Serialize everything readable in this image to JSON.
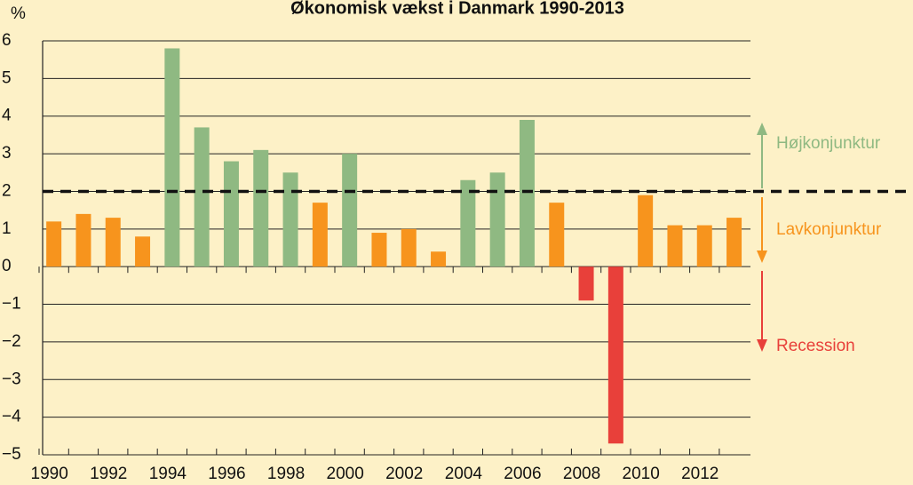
{
  "chart_data": {
    "type": "bar",
    "title": "Økonomisk vækst i Danmark 1990-2013",
    "y_label": "%",
    "categories": [
      "1990",
      null,
      "1992",
      null,
      "1994",
      null,
      "1996",
      null,
      "1998",
      null,
      "2000",
      null,
      "2002",
      null,
      "2004",
      null,
      "2006",
      null,
      "2008",
      null,
      "2010",
      null,
      "2012",
      null
    ],
    "values": [
      1.2,
      1.4,
      1.3,
      0.8,
      5.8,
      3.7,
      2.8,
      3.1,
      2.5,
      1.7,
      3.0,
      0.9,
      1.0,
      0.4,
      2.3,
      2.5,
      3.9,
      1.7,
      -0.9,
      -4.7,
      1.9,
      1.1,
      1.1,
      1.3
    ],
    "colors": [
      "#f7941d",
      "#f7941d",
      "#f7941d",
      "#f7941d",
      "#8fb982",
      "#8fb982",
      "#8fb982",
      "#8fb982",
      "#8fb982",
      "#f7941d",
      "#8fb982",
      "#f7941d",
      "#f7941d",
      "#f7941d",
      "#8fb982",
      "#8fb982",
      "#8fb982",
      "#f7941d",
      "#e8403a",
      "#e8403a",
      "#f7941d",
      "#f7941d",
      "#f7941d",
      "#f7941d"
    ],
    "ylim": [
      -5,
      6
    ],
    "yticks": [
      {
        "value": -5,
        "label": "−5"
      },
      {
        "value": -4,
        "label": "−4"
      },
      {
        "value": -3,
        "label": "−3"
      },
      {
        "value": -2,
        "label": "−2"
      },
      {
        "value": -1,
        "label": "−1"
      },
      0,
      1,
      2,
      3,
      4,
      5,
      6
    ],
    "grid": true,
    "reference_line": 2,
    "annotations": [
      "Højkonjunktur",
      "Lavkonjunktur",
      "Recession"
    ]
  }
}
